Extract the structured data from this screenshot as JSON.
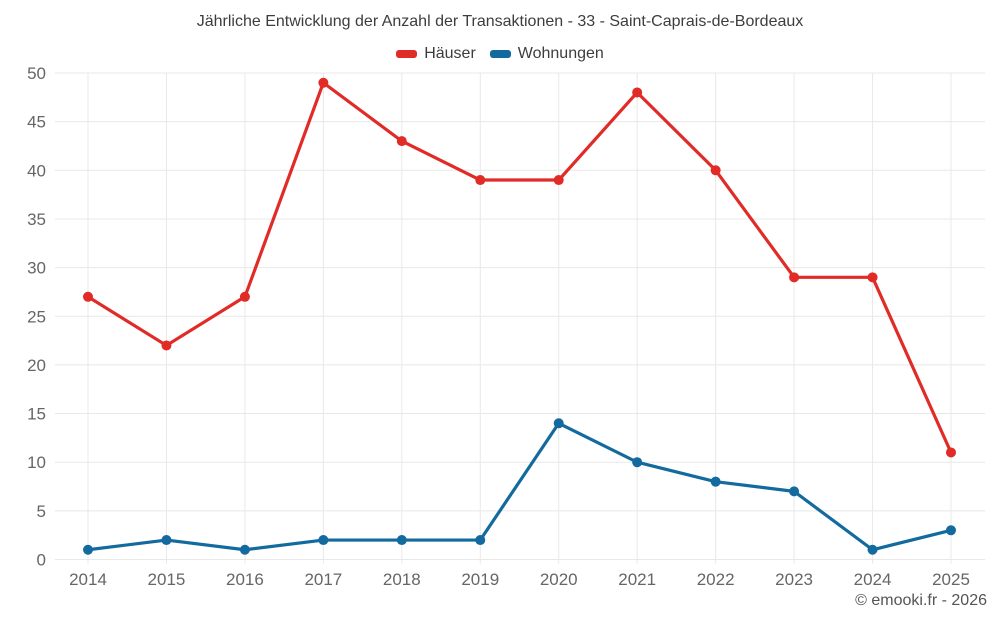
{
  "watermark": "© emooki.fr - 2026",
  "chart_data": {
    "type": "line",
    "title": "Jährliche Entwicklung der Anzahl der Transaktionen - 33 - Saint-Caprais-de-Bordeaux",
    "x": [
      2014,
      2015,
      2016,
      2017,
      2018,
      2019,
      2020,
      2021,
      2022,
      2023,
      2024,
      2025
    ],
    "series": [
      {
        "name": "Häuser",
        "color": "#e02b27",
        "values": [
          27,
          22,
          27,
          49,
          43,
          39,
          39,
          48,
          40,
          29,
          29,
          11
        ]
      },
      {
        "name": "Wohnungen",
        "color": "#136a9e",
        "values": [
          1,
          2,
          1,
          2,
          2,
          2,
          14,
          10,
          8,
          7,
          1,
          3
        ]
      }
    ],
    "xlabel": "",
    "ylabel": "",
    "ylim": [
      0,
      50
    ],
    "ytick_step": 5,
    "grid": true,
    "legend_position": "top",
    "colors": {
      "grid": "#e8e8e8",
      "tick_text": "#666666",
      "title_text": "#3d3d3d",
      "background": "#ffffff"
    }
  }
}
